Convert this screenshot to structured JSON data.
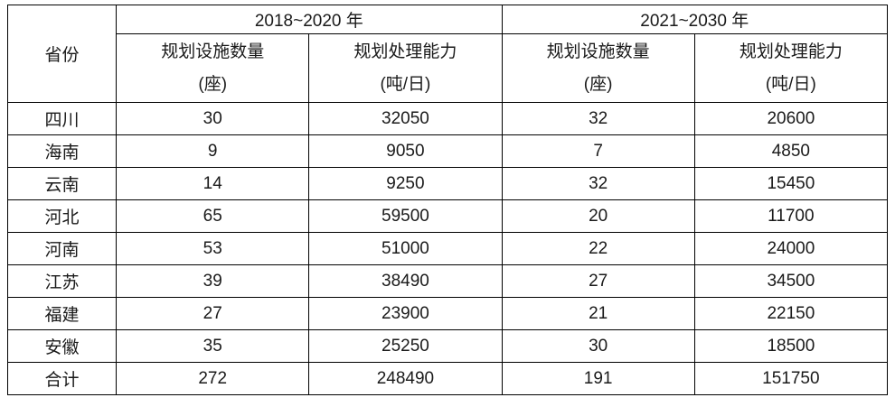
{
  "table": {
    "header": {
      "province_label": "省份",
      "period1": "2018~2020 年",
      "period2": "2021~2030 年",
      "count_label": "规划设施数量",
      "count_unit": "(座)",
      "capacity_label": "规划处理能力",
      "capacity_unit": "(吨/日)"
    },
    "rows": [
      {
        "province": "四川",
        "count_2018": "30",
        "capacity_2018": "32050",
        "count_2021": "32",
        "capacity_2021": "20600"
      },
      {
        "province": "海南",
        "count_2018": "9",
        "capacity_2018": "9050",
        "count_2021": "7",
        "capacity_2021": "4850"
      },
      {
        "province": "云南",
        "count_2018": "14",
        "capacity_2018": "9250",
        "count_2021": "32",
        "capacity_2021": "15450"
      },
      {
        "province": "河北",
        "count_2018": "65",
        "capacity_2018": "59500",
        "count_2021": "20",
        "capacity_2021": "11700"
      },
      {
        "province": "河南",
        "count_2018": "53",
        "capacity_2018": "51000",
        "count_2021": "22",
        "capacity_2021": "24000"
      },
      {
        "province": "江苏",
        "count_2018": "39",
        "capacity_2018": "38490",
        "count_2021": "27",
        "capacity_2021": "34500"
      },
      {
        "province": "福建",
        "count_2018": "27",
        "capacity_2018": "23900",
        "count_2021": "21",
        "capacity_2021": "22150"
      },
      {
        "province": "安徽",
        "count_2018": "35",
        "capacity_2018": "25250",
        "count_2021": "30",
        "capacity_2021": "18500"
      },
      {
        "province": "合计",
        "count_2018": "272",
        "capacity_2018": "248490",
        "count_2021": "191",
        "capacity_2021": "151750"
      }
    ]
  }
}
